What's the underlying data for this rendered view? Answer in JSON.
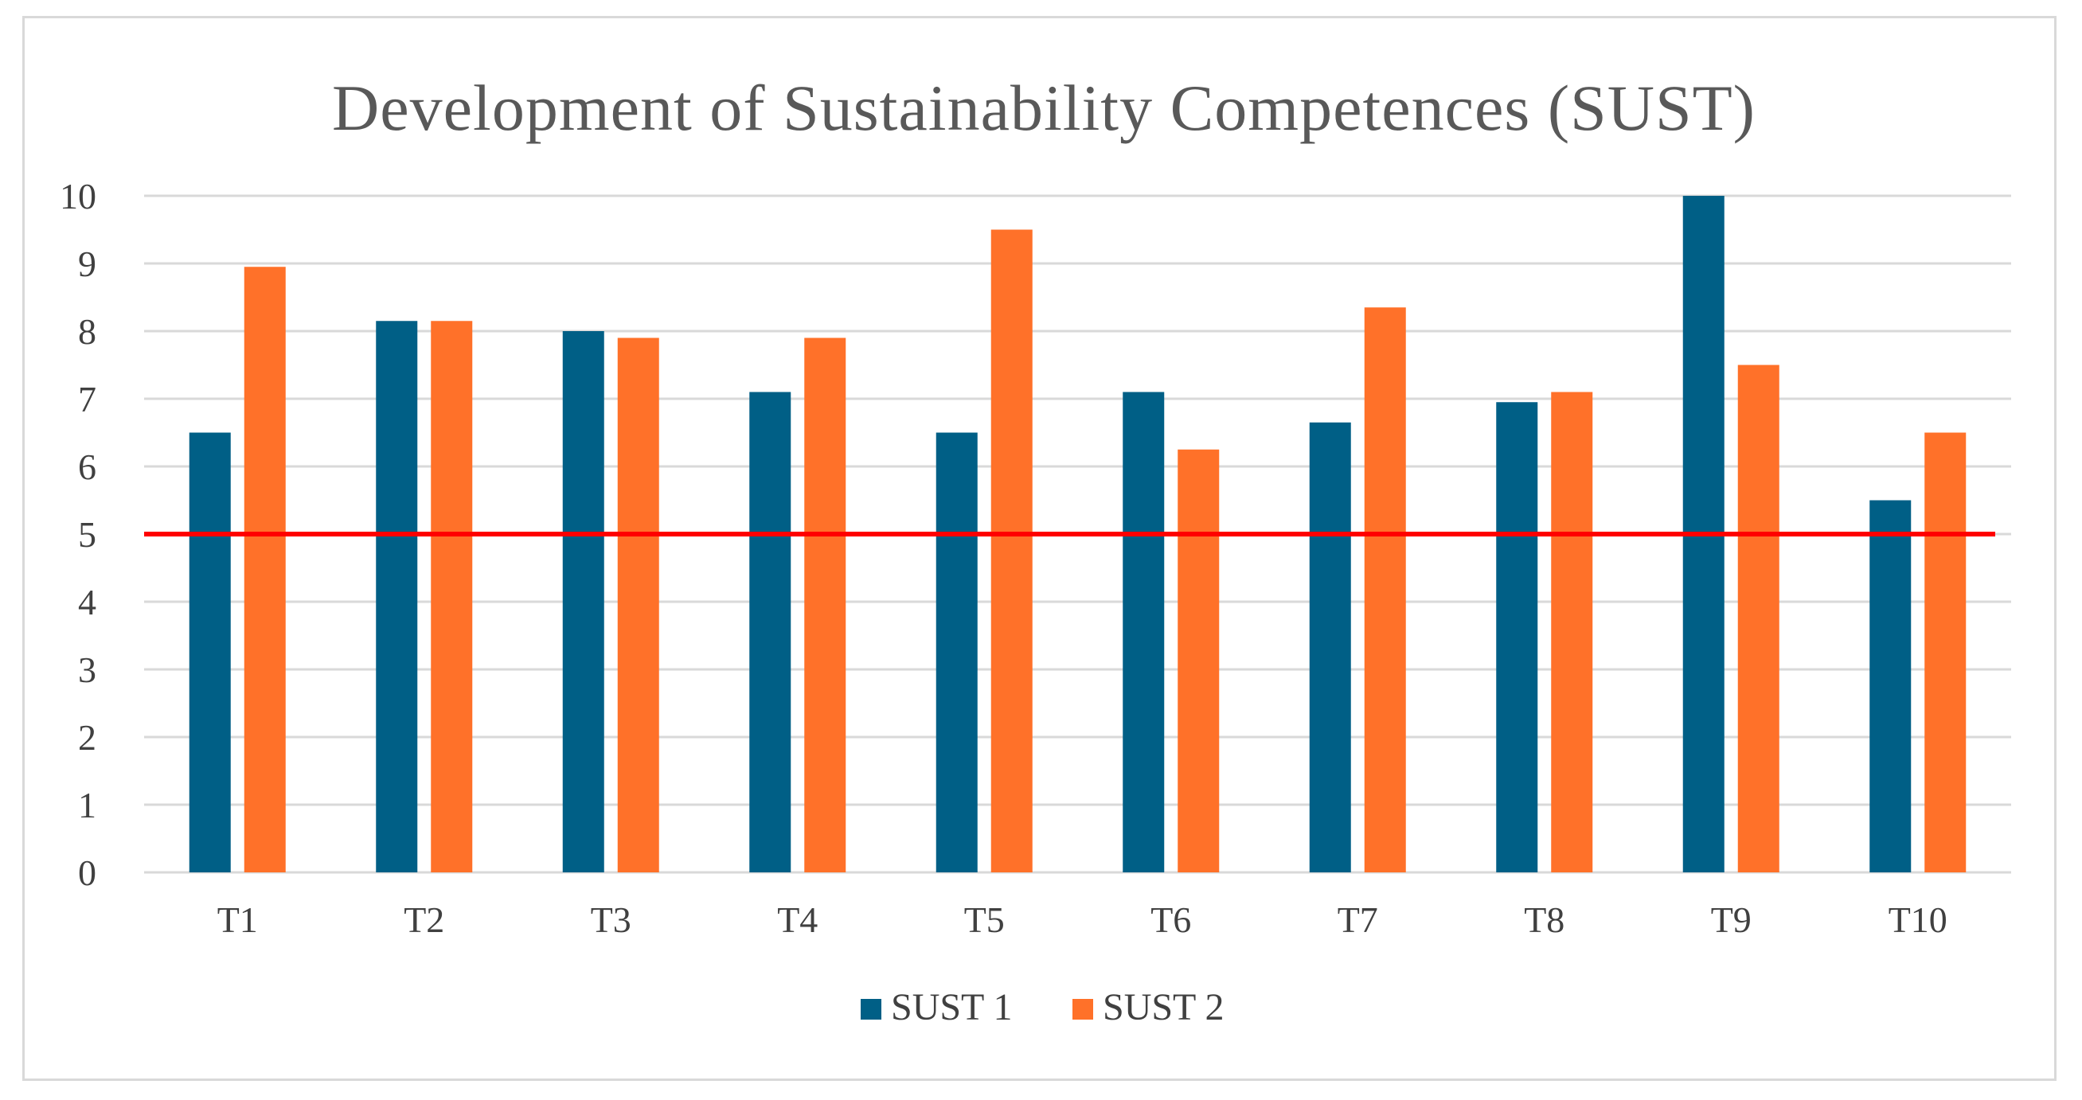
{
  "chart_data": {
    "type": "bar",
    "title": "Development of Sustainability  Competences  (SUST)",
    "xlabel": "",
    "ylabel": "",
    "categories": [
      "T1",
      "T2",
      "T3",
      "T4",
      "T5",
      "T6",
      "T7",
      "T8",
      "T9",
      "T10"
    ],
    "series": [
      {
        "name": "SUST 1",
        "color": "#005f86",
        "values": [
          6.5,
          8.15,
          8.0,
          7.1,
          6.5,
          7.1,
          6.65,
          6.95,
          10.0,
          5.5
        ]
      },
      {
        "name": "SUST 2",
        "color": "#ff7129",
        "values": [
          8.95,
          8.15,
          7.9,
          7.9,
          9.5,
          6.25,
          8.35,
          7.1,
          7.5,
          6.5
        ]
      }
    ],
    "ylim": [
      0,
      10
    ],
    "yticks": [
      0,
      1,
      2,
      3,
      4,
      5,
      6,
      7,
      8,
      9,
      10
    ],
    "grid": true,
    "reference_line": {
      "value": 5,
      "color": "#ff0000"
    },
    "legend_position": "bottom-center"
  }
}
